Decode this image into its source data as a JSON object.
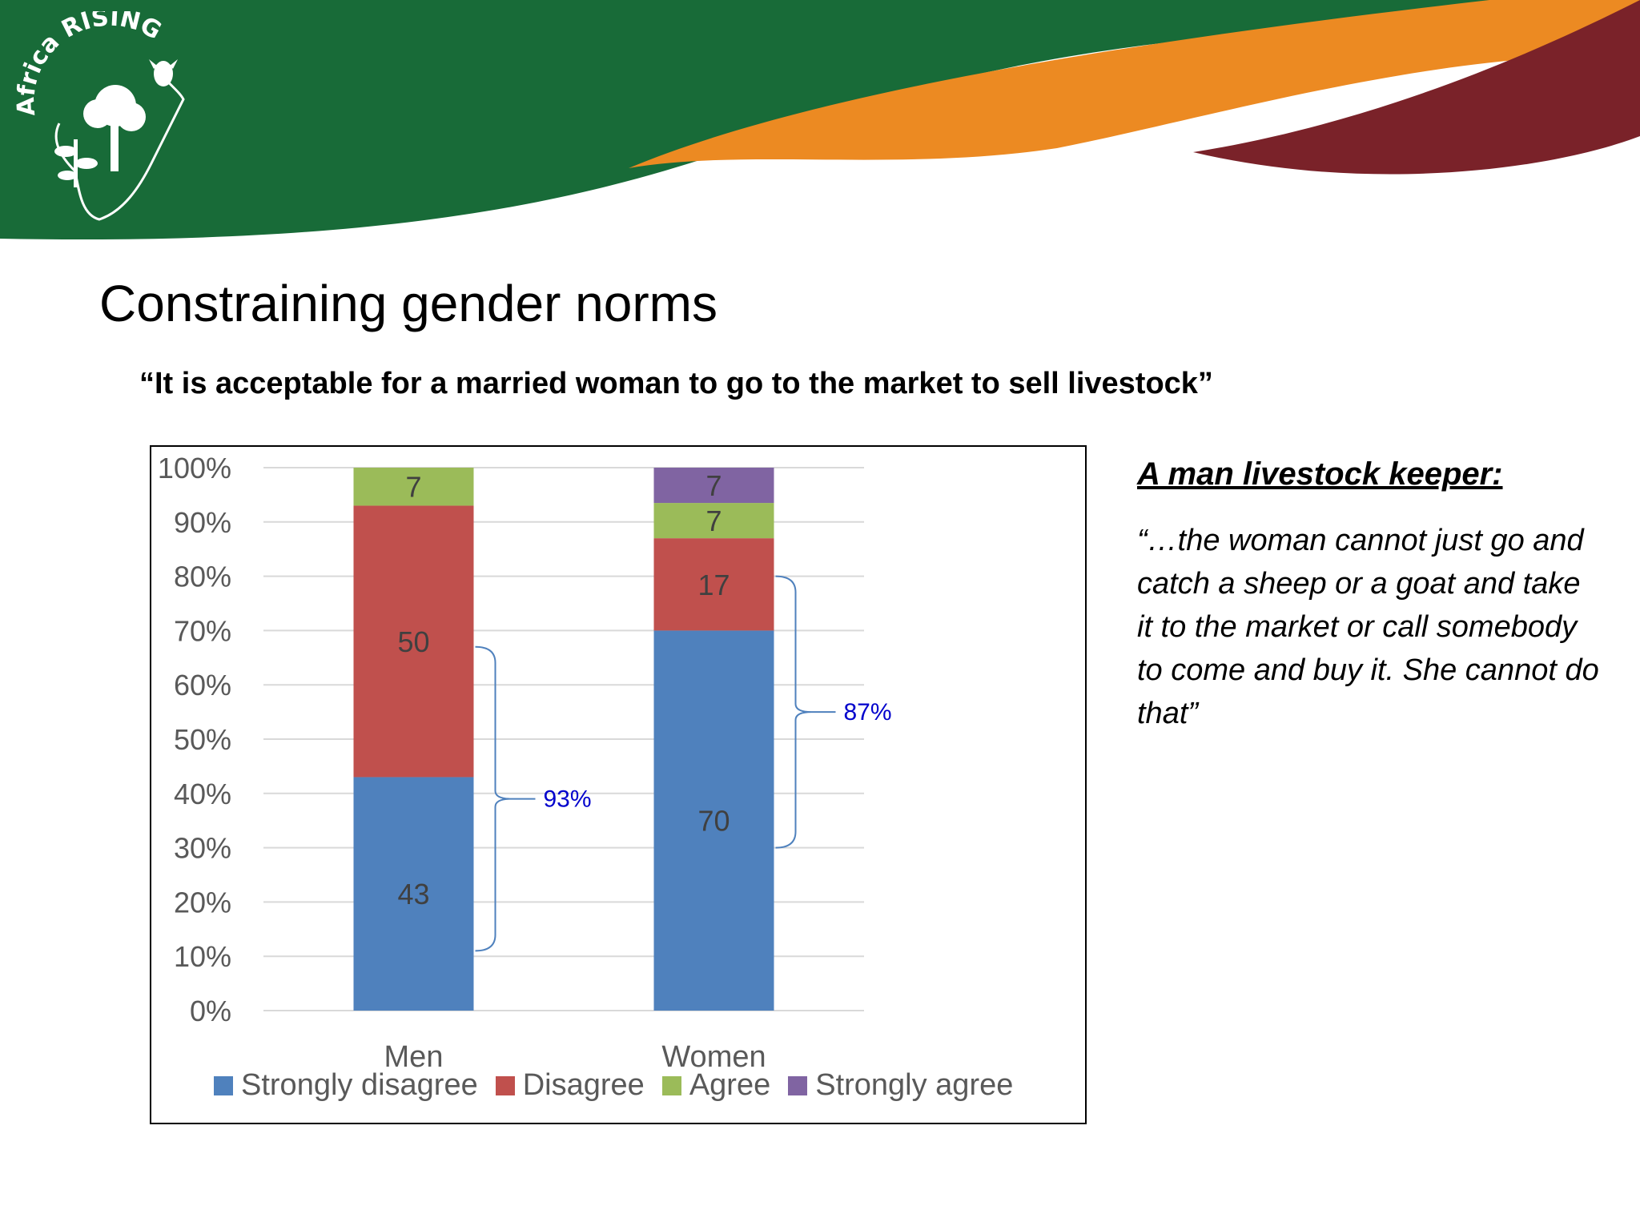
{
  "logo": {
    "brand": "Africa RISING"
  },
  "slide": {
    "title": "Constraining gender norms",
    "question": "“It is acceptable for a married woman to go to the market to sell livestock”"
  },
  "quote": {
    "heading": "A man livestock keeper:",
    "text": "“…the woman cannot just go and catch a sheep or a goat and take it to the market or call somebody to come and buy it. She cannot do that”"
  },
  "colors": {
    "banner_green": "#186b38",
    "banner_orange": "#ec8a22",
    "banner_maroon": "#7a2229",
    "strongly_disagree": "#4f81bd",
    "disagree": "#c0504d",
    "agree": "#9bbb59",
    "strongly_agree": "#8064a2",
    "bracket": "#4f81bd",
    "bracket_label": "#0000cc"
  },
  "chart_data": {
    "type": "bar",
    "stacked": true,
    "categories": [
      "Men",
      "Women"
    ],
    "y_ticks": [
      "0%",
      "10%",
      "20%",
      "30%",
      "40%",
      "50%",
      "60%",
      "70%",
      "80%",
      "90%",
      "100%"
    ],
    "ylim": [
      0,
      100
    ],
    "grid": true,
    "legend_position": "bottom",
    "series": [
      {
        "name": "Strongly disagree",
        "values": [
          43,
          70
        ],
        "labels": [
          "43",
          "70"
        ],
        "color": "#4f81bd"
      },
      {
        "name": "Disagree",
        "values": [
          50,
          17
        ],
        "labels": [
          "50",
          "17"
        ],
        "color": "#c0504d"
      },
      {
        "name": "Agree",
        "values": [
          7,
          6.5
        ],
        "labels": [
          "7",
          "7"
        ],
        "color": "#9bbb59"
      },
      {
        "name": "Strongly agree",
        "values": [
          0,
          6.5
        ],
        "labels": [
          "",
          "7"
        ],
        "color": "#8064a2"
      }
    ],
    "annotations": [
      {
        "category": "Men",
        "text": "93%",
        "from": 11,
        "to": 67
      },
      {
        "category": "Women",
        "text": "87%",
        "from": 30,
        "to": 80
      }
    ]
  }
}
